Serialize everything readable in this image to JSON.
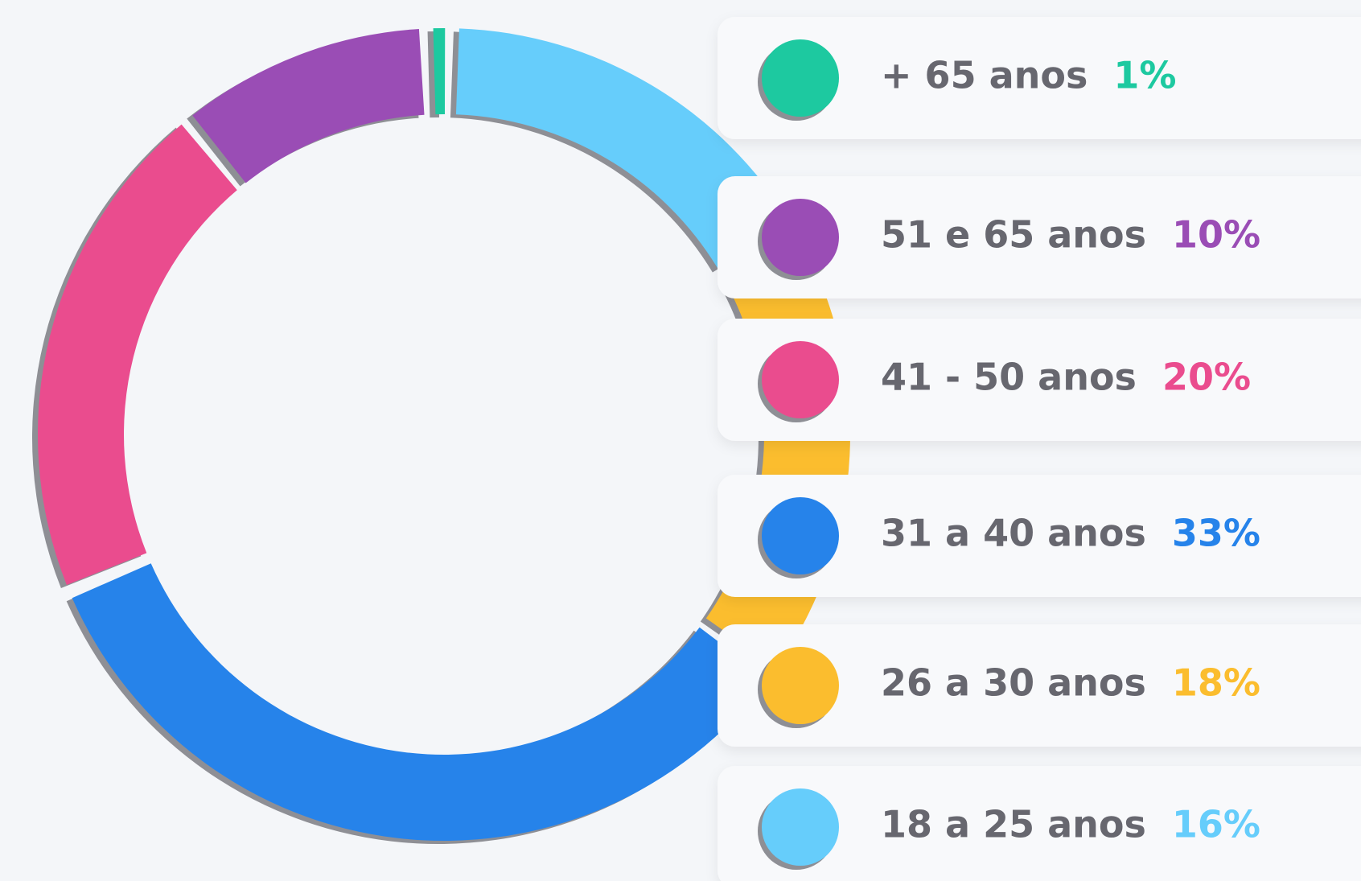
{
  "chart_data": {
    "type": "donut",
    "categories": [
      "+ 65 anos",
      "51 e 65 anos",
      "41 - 50 anos",
      "31 a 40 anos",
      "26 a 30 anos",
      "18 a 25 anos"
    ],
    "values": [
      1,
      10,
      20,
      33,
      18,
      16
    ],
    "value_labels": [
      "1%",
      "10%",
      "20%",
      "33%",
      "18%",
      "16%"
    ],
    "colors": [
      "#1dc9a0",
      "#9a4db5",
      "#ea4c8e",
      "#2683ea",
      "#fbbd2e",
      "#66cdfb"
    ],
    "legend": "right"
  }
}
